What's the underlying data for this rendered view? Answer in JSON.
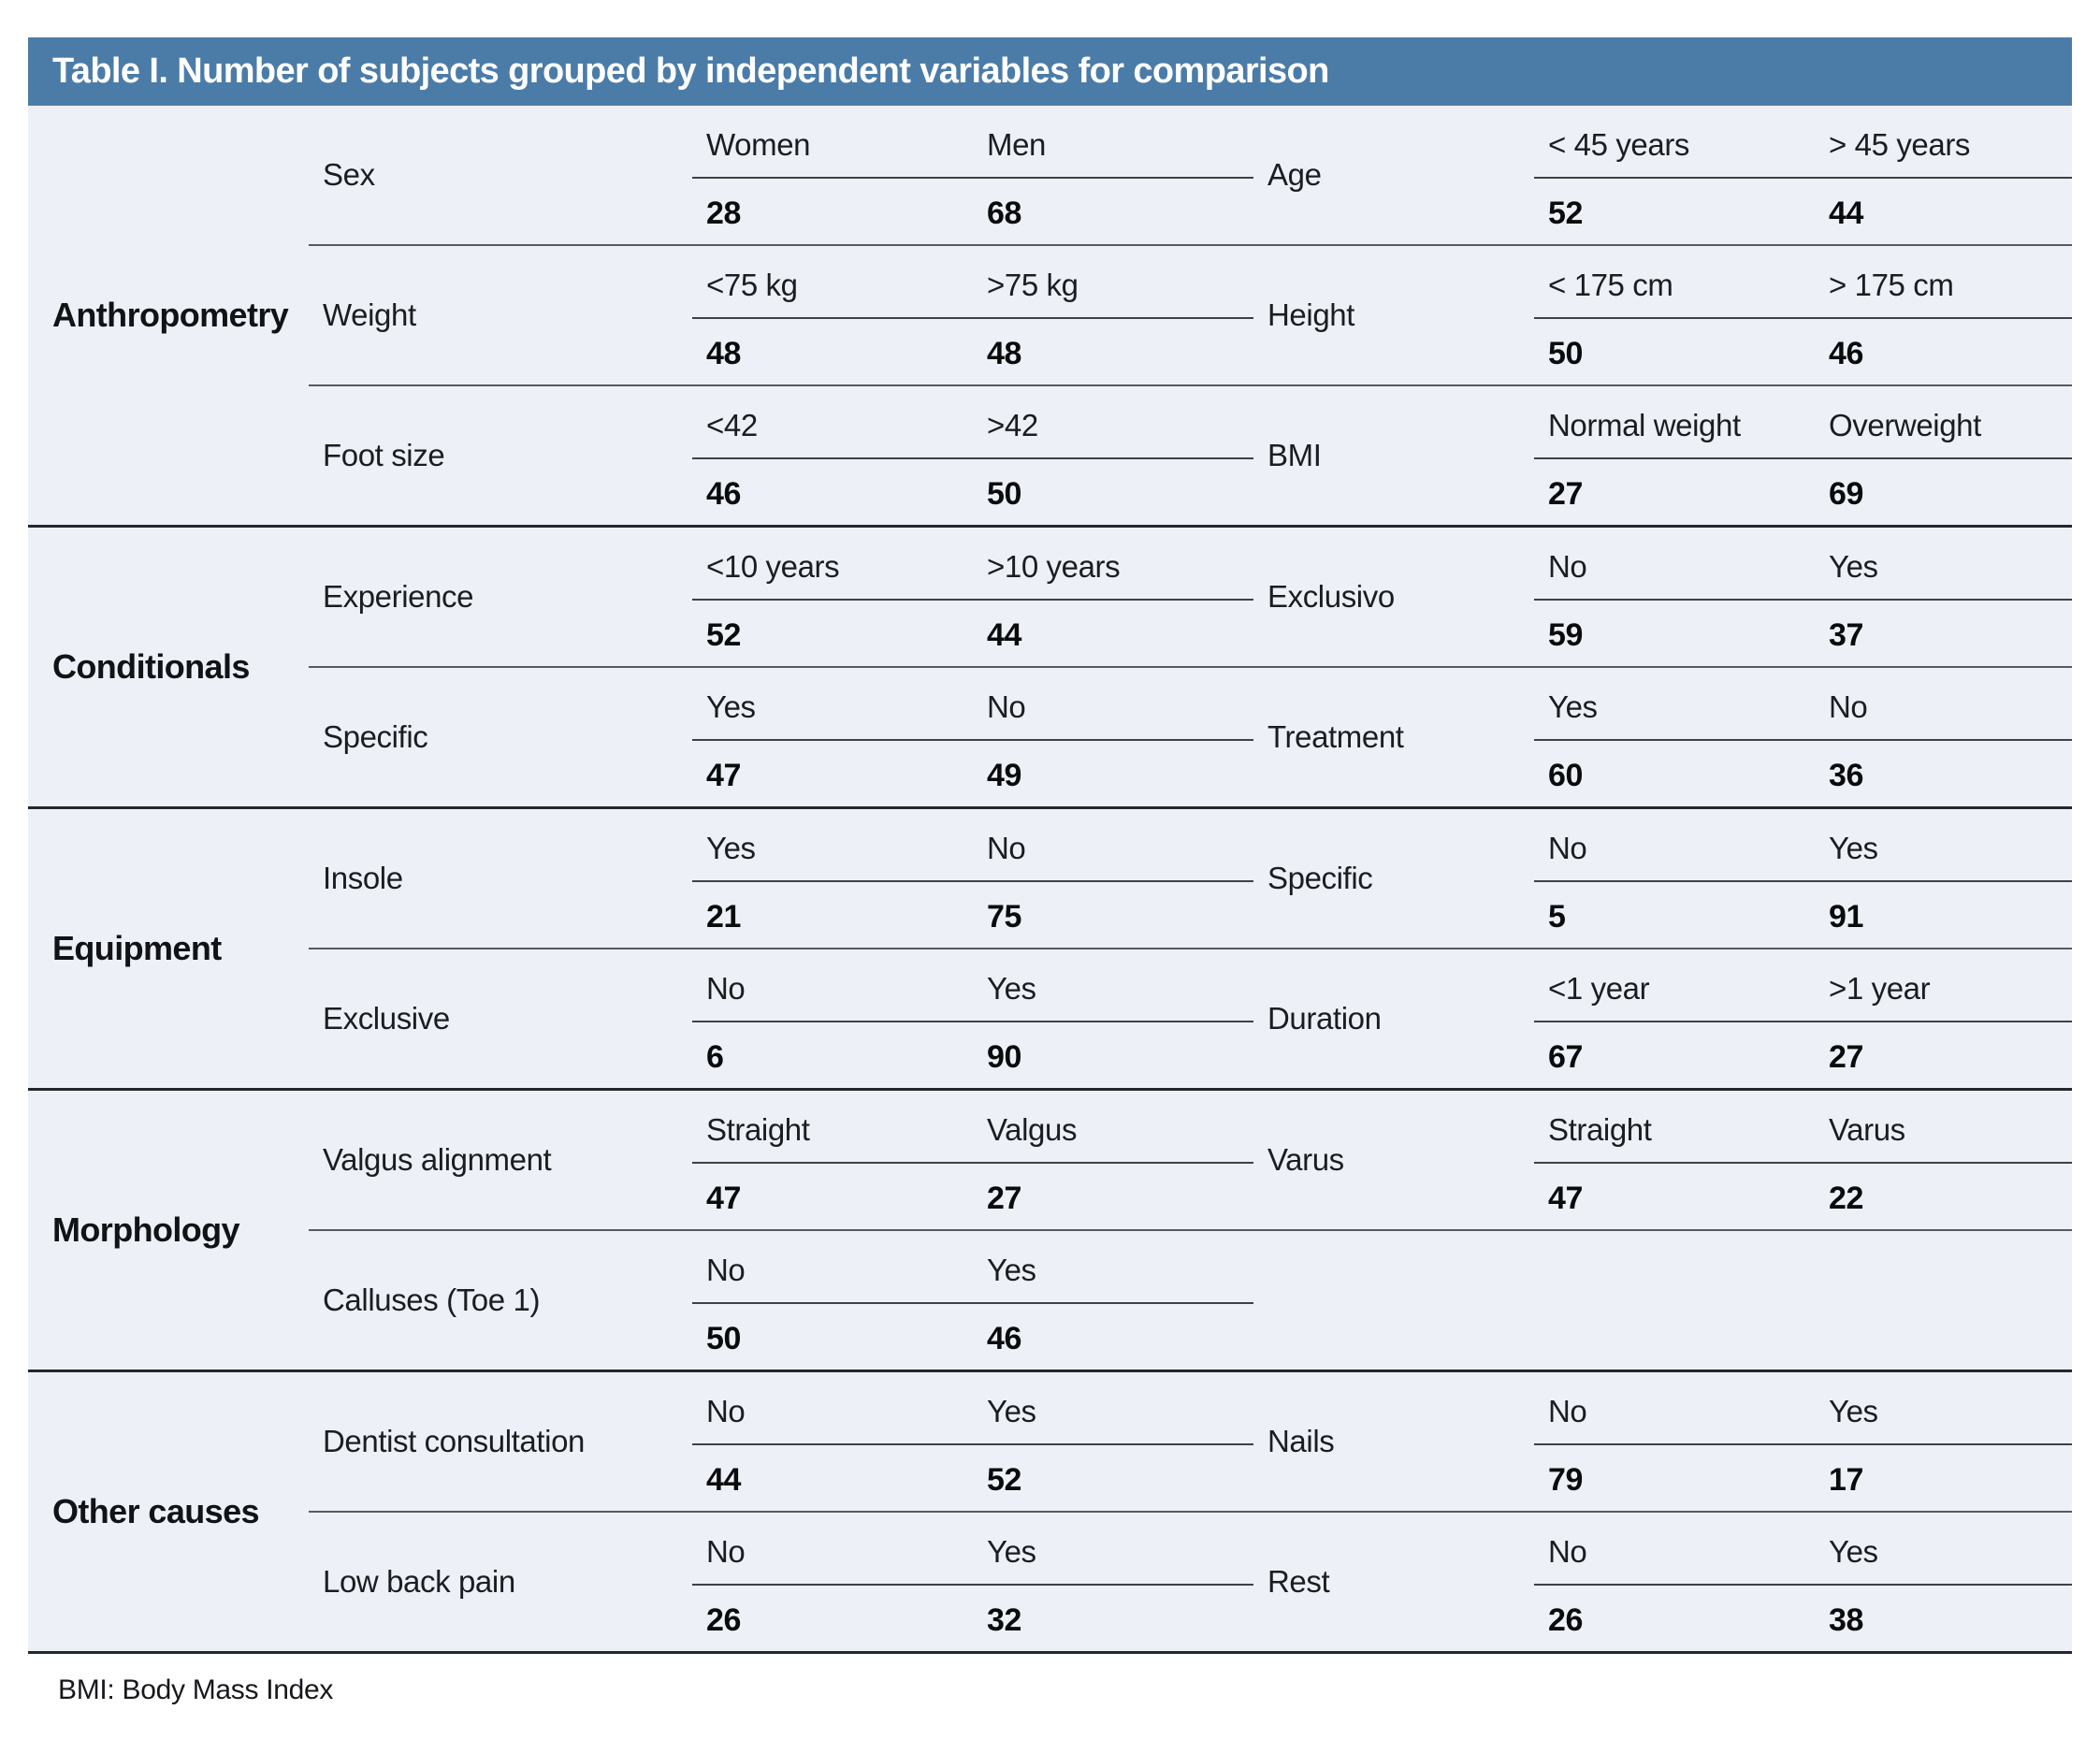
{
  "table": {
    "title": "Table I. Number of subjects grouped by independent variables for comparison",
    "footnote": "BMI: Body Mass Index",
    "colors": {
      "header_bg": "#4b7ca8",
      "body_bg": "#edf1f7",
      "group_separator": "#24282e",
      "row_separator": "#565b61",
      "mid_rule": "#3e4247"
    },
    "groups": [
      {
        "name": "Anthropometry",
        "rows": [
          {
            "left": {
              "variable": "Sex",
              "categories": [
                "Women",
                "Men"
              ],
              "values": [
                "28",
                "68"
              ]
            },
            "right": {
              "variable": "Age",
              "categories": [
                "< 45 years",
                "> 45 years"
              ],
              "values": [
                "52",
                "44"
              ]
            }
          },
          {
            "left": {
              "variable": "Weight",
              "categories": [
                "<75 kg",
                ">75 kg"
              ],
              "values": [
                "48",
                "48"
              ]
            },
            "right": {
              "variable": "Height",
              "categories": [
                "< 175 cm",
                "> 175 cm"
              ],
              "values": [
                "50",
                "46"
              ]
            }
          },
          {
            "left": {
              "variable": "Foot size",
              "categories": [
                "<42",
                ">42"
              ],
              "values": [
                "46",
                "50"
              ]
            },
            "right": {
              "variable": "BMI",
              "categories": [
                "Normal weight",
                "Overweight"
              ],
              "values": [
                "27",
                "69"
              ]
            }
          }
        ]
      },
      {
        "name": "Conditionals",
        "rows": [
          {
            "left": {
              "variable": "Experience",
              "categories": [
                "<10 years",
                ">10 years"
              ],
              "values": [
                "52",
                "44"
              ]
            },
            "right": {
              "variable": "Exclusivo",
              "categories": [
                "No",
                "Yes"
              ],
              "values": [
                "59",
                "37"
              ]
            }
          },
          {
            "left": {
              "variable": "Specific",
              "categories": [
                "Yes",
                "No"
              ],
              "values": [
                "47",
                "49"
              ]
            },
            "right": {
              "variable": "Treatment",
              "categories": [
                "Yes",
                "No"
              ],
              "values": [
                "60",
                "36"
              ]
            }
          }
        ]
      },
      {
        "name": "Equipment",
        "rows": [
          {
            "left": {
              "variable": "Insole",
              "categories": [
                "Yes",
                "No"
              ],
              "values": [
                "21",
                "75"
              ]
            },
            "right": {
              "variable": "Specific",
              "categories": [
                "No",
                "Yes"
              ],
              "values": [
                "5",
                "91"
              ]
            }
          },
          {
            "left": {
              "variable": "Exclusive",
              "categories": [
                "No",
                "Yes"
              ],
              "values": [
                "6",
                "90"
              ]
            },
            "right": {
              "variable": "Duration",
              "categories": [
                "<1 year",
                ">1 year"
              ],
              "values": [
                "67",
                "27"
              ]
            }
          }
        ]
      },
      {
        "name": "Morphology",
        "rows": [
          {
            "left": {
              "variable": "Valgus alignment",
              "categories": [
                "Straight",
                "Valgus"
              ],
              "values": [
                "47",
                "27"
              ]
            },
            "right": {
              "variable": "Varus",
              "categories": [
                "Straight",
                "Varus"
              ],
              "values": [
                "47",
                "22"
              ]
            }
          },
          {
            "left": {
              "variable": "Calluses (Toe 1)",
              "categories": [
                "No",
                "Yes"
              ],
              "values": [
                "50",
                "46"
              ]
            },
            "right": null
          }
        ]
      },
      {
        "name": "Other causes",
        "rows": [
          {
            "left": {
              "variable": "Dentist consultation",
              "categories": [
                "No",
                "Yes"
              ],
              "values": [
                "44",
                "52"
              ]
            },
            "right": {
              "variable": "Nails",
              "categories": [
                "No",
                "Yes"
              ],
              "values": [
                "79",
                "17"
              ]
            }
          },
          {
            "left": {
              "variable": "Low back pain",
              "categories": [
                "No",
                "Yes"
              ],
              "values": [
                "26",
                "32"
              ]
            },
            "right": {
              "variable": "Rest",
              "categories": [
                "No",
                "Yes"
              ],
              "values": [
                "26",
                "38"
              ]
            }
          }
        ]
      }
    ]
  }
}
